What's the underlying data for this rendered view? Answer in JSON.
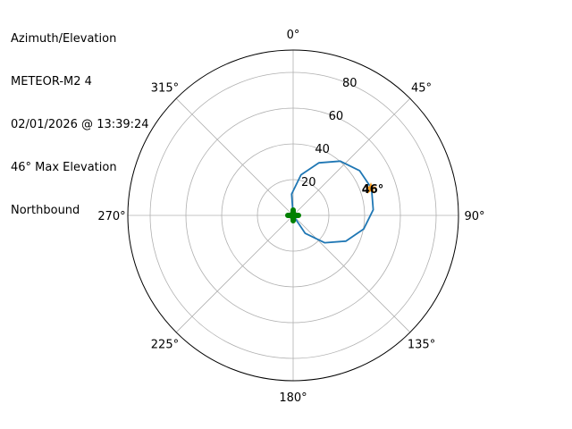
{
  "info_lines": [
    "Azimuth/Elevation",
    "METEOR-M2 4",
    "02/01/2026 @ 13:39:24",
    "46° Max Elevation",
    "Northbound"
  ],
  "chart_data": {
    "type": "line",
    "projection": "polar",
    "theta_zero": "north",
    "theta_direction": "clockwise",
    "theta_ticks": [
      "0°",
      "45°",
      "90°",
      "135°",
      "180°",
      "225°",
      "270°",
      "315°"
    ],
    "r_ticks": [
      20,
      40,
      60,
      80
    ],
    "rlim": [
      0,
      92.5
    ],
    "grid": true,
    "series": [
      {
        "color": "#1f77b4",
        "points": [
          {
            "az": 0,
            "el": 0
          },
          {
            "az": 146,
            "el": 12.1
          },
          {
            "az": 131,
            "el": 23.3
          },
          {
            "az": 116,
            "el": 32.9
          },
          {
            "az": 101,
            "el": 40.2
          },
          {
            "az": 86,
            "el": 44.9
          },
          {
            "az": 71,
            "el": 46.4
          },
          {
            "az": 56,
            "el": 44.8
          },
          {
            "az": 41,
            "el": 40.2
          },
          {
            "az": 26,
            "el": 32.7
          },
          {
            "az": 11,
            "el": 23.1
          },
          {
            "az": 356,
            "el": 12
          },
          {
            "az": 0,
            "el": 0
          }
        ]
      }
    ],
    "max_marker": {
      "az": 71,
      "el": 46,
      "label": "46°",
      "color": "#ff9f1c"
    },
    "start_marker": {
      "az": 0,
      "el": 0,
      "color": "#008000"
    }
  }
}
